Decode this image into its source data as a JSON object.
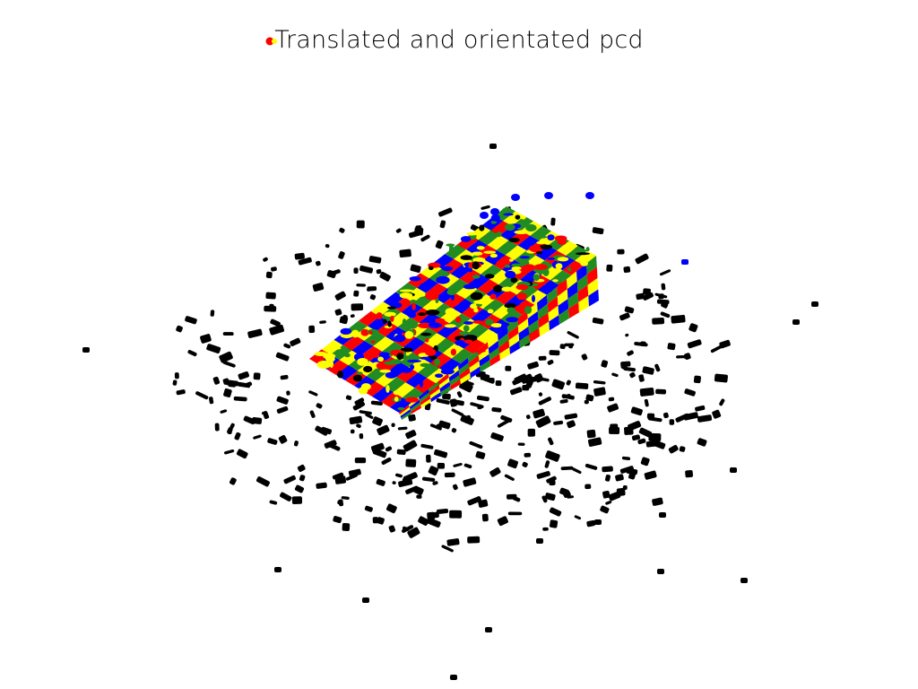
{
  "window": {
    "title": "Translated and orientated pcd"
  },
  "colors": {
    "background": "#ffffff",
    "environment_points": "#000000",
    "object_red": "#ff0000",
    "object_yellow": "#ffff00",
    "object_blue": "#0000ff",
    "object_green": "#228b22"
  },
  "legend_marker": {
    "colors": [
      "#ff0000",
      "#ffff00"
    ]
  }
}
